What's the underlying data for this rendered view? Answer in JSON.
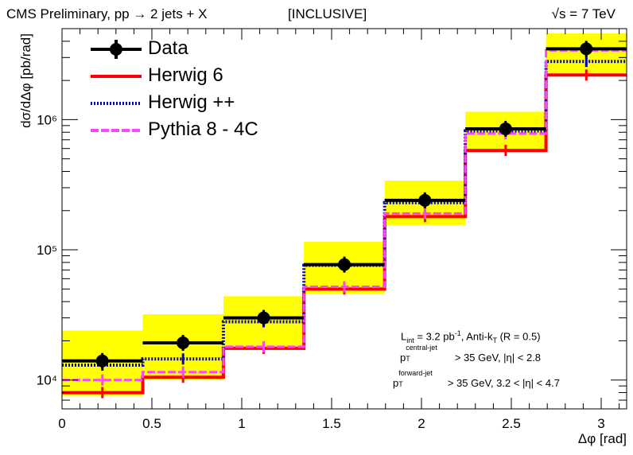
{
  "header": {
    "title": "CMS Preliminary, pp → 2 jets + X",
    "tag": "[INCLUSIVE]",
    "energy_sqrt": "√s",
    "energy_value": " = 7 TeV"
  },
  "info": {
    "line1_pre": "L",
    "line1_sub": "int",
    "line1_mid": " = 3.2 pb",
    "line1_sup": "-1",
    "line1_post": ", Anti-k",
    "line1_sub2": "T",
    "line1_end": " (R = 0.5)",
    "line2_p": "p",
    "line2_sub": "T",
    "line2_sup": "central-jet",
    "line2_rest": "  > 35 GeV, |η| < 2.8",
    "line3_p": "p",
    "line3_sub": "T",
    "line3_sup": "forward-jet",
    "line3_rest": "  > 35 GeV, 3.2 < |η| < 4.7"
  },
  "chart_data": {
    "type": "histogram",
    "xlabel": "Δφ [rad]",
    "ylabel": "dσ/dΔφ [pb/rad]",
    "xlim": [
      0,
      3.1416
    ],
    "ylim": [
      6000,
      5000000
    ],
    "yscale": "log",
    "grid": false,
    "legend_position": "top-left",
    "x_ticks": [
      "0",
      "0.5",
      "1",
      "1.5",
      "2",
      "2.5",
      "3"
    ],
    "x_tick_values": [
      0,
      0.5,
      1,
      1.5,
      2,
      2.5,
      3
    ],
    "y_ticks": [
      "10⁴",
      "10⁵",
      "10⁶"
    ],
    "y_tick_values": [
      10000,
      100000,
      1000000
    ],
    "bin_edges": [
      0,
      0.449,
      0.898,
      1.346,
      1.795,
      2.244,
      2.693,
      3.1416
    ],
    "data": {
      "name": "Data",
      "color": "#000000",
      "x": [
        0.224,
        0.673,
        1.122,
        1.571,
        2.019,
        2.468,
        2.917
      ],
      "values": [
        14000,
        19300,
        30000,
        77000,
        240000,
        850000,
        3500000
      ],
      "sys_low": [
        7500,
        10000,
        17000,
        46000,
        155000,
        560000,
        2300000
      ],
      "sys_high": [
        24000,
        32000,
        44000,
        115000,
        340000,
        1150000,
        4600000
      ]
    },
    "series": [
      {
        "name": "Herwig 6",
        "color": "#ff0000",
        "style": "solid",
        "values": [
          8000,
          10500,
          17500,
          50000,
          180000,
          580000,
          2200000
        ]
      },
      {
        "name": "Herwig ++",
        "color": "#0000cc",
        "style": "dotted",
        "values": [
          13000,
          14500,
          28000,
          76000,
          230000,
          820000,
          2800000
        ]
      },
      {
        "name": "Pythia 8 - 4C",
        "color": "#ff44ff",
        "style": "dashed",
        "values": [
          10000,
          11500,
          18000,
          52000,
          190000,
          780000,
          3400000
        ]
      }
    ]
  }
}
